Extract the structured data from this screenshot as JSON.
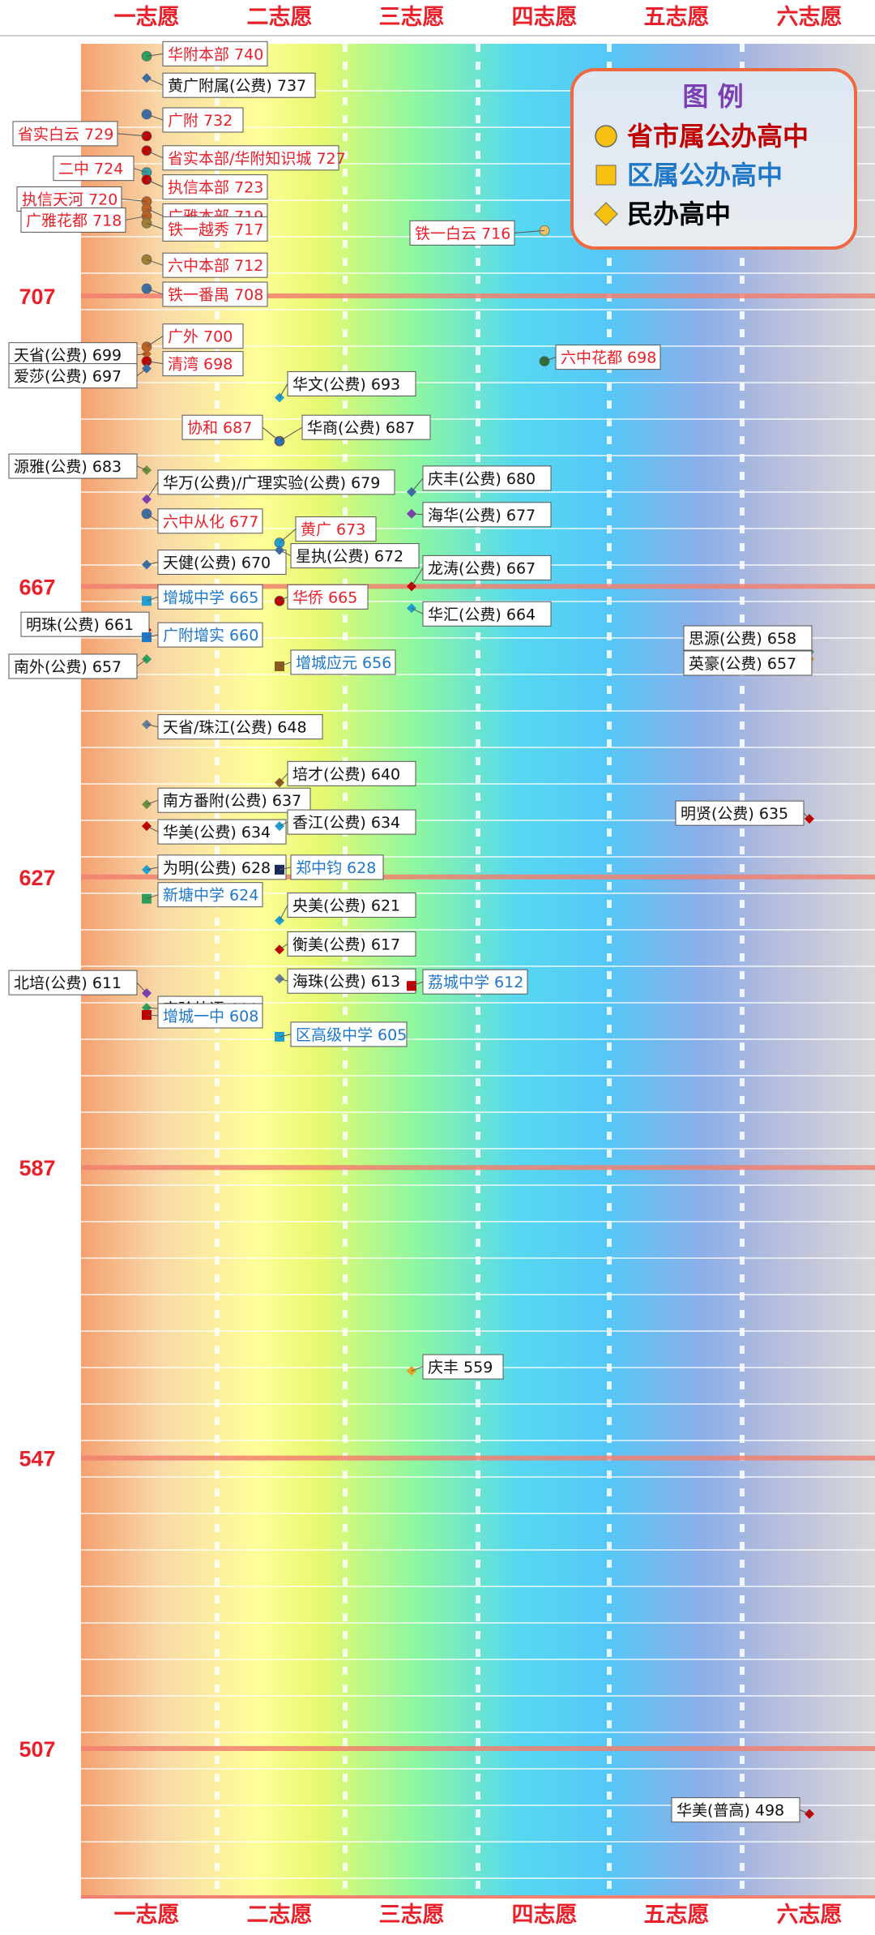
{
  "chart_data": {
    "type": "scatter",
    "title": "",
    "columns": [
      "一志愿",
      "二志愿",
      "三志愿",
      "四志愿",
      "五志愿",
      "六志愿"
    ],
    "y_ticks": [
      707,
      667,
      627,
      587,
      547,
      507
    ],
    "ylim": [
      490,
      750
    ],
    "grid": true,
    "legend": {
      "title": "图 例",
      "placement": "top-right",
      "items": [
        {
          "label": "省市属公办高中",
          "shape": "circle",
          "color": "#c00000"
        },
        {
          "label": "区属公办高中",
          "shape": "square",
          "color": "#1f77c8"
        },
        {
          "label": "民办高中",
          "shape": "diamond",
          "color": "#000000"
        }
      ]
    },
    "points": [
      {
        "column": 1,
        "score": 740,
        "text": "华附本部 740",
        "category": "city",
        "marker": "#2ca05a"
      },
      {
        "column": 1,
        "score": 737,
        "text": "黄广附属(公费) 737",
        "category": "private",
        "marker": "#3a6ea5"
      },
      {
        "column": 1,
        "score": 732,
        "text": "广附 732",
        "category": "city",
        "marker": "#3a6ea5"
      },
      {
        "column": 1,
        "score": 729,
        "text": "省实白云 729",
        "category": "city",
        "marker": "#c00000"
      },
      {
        "column": 1,
        "score": 727,
        "text": "省实本部/华附知识城 727",
        "category": "city",
        "marker": "#c00000"
      },
      {
        "column": 1,
        "score": 724,
        "text": "二中 724",
        "category": "city",
        "marker": "#2ca0a0"
      },
      {
        "column": 1,
        "score": 723,
        "text": "执信本部 723",
        "category": "city",
        "marker": "#c00000"
      },
      {
        "column": 1,
        "score": 720,
        "text": "执信天河 720",
        "category": "city",
        "marker": "#c06020"
      },
      {
        "column": 1,
        "score": 719,
        "text": "广雅本部 719",
        "category": "city",
        "marker": "#c06020"
      },
      {
        "column": 1,
        "score": 718,
        "text": "广雅花都 718",
        "category": "city",
        "marker": "#c06020"
      },
      {
        "column": 1,
        "score": 717,
        "text": "铁一越秀 717",
        "category": "city",
        "marker": "#a08030"
      },
      {
        "column": 1,
        "score": 712,
        "text": "六中本部 712",
        "category": "city",
        "marker": "#a08030"
      },
      {
        "column": 1,
        "score": 708,
        "text": "铁一番禺 708",
        "category": "city",
        "marker": "#3a6ea5"
      },
      {
        "column": 1,
        "score": 700,
        "text": "广外 700",
        "category": "city",
        "marker": "#c06020"
      },
      {
        "column": 1,
        "score": 699,
        "text": "天省(公费) 699",
        "category": "private",
        "marker": "#c06020"
      },
      {
        "column": 1,
        "score": 698,
        "text": "清湾 698",
        "category": "city",
        "marker": "#c00000"
      },
      {
        "column": 1,
        "score": 697,
        "text": "爱莎(公费) 697",
        "category": "private",
        "marker": "#3a6ea5"
      },
      {
        "column": 1,
        "score": 683,
        "text": "源雅(公费) 683",
        "category": "private",
        "marker": "#6a8e3a"
      },
      {
        "column": 1,
        "score": 679,
        "text": "华万(公费)/广理实验(公费) 679",
        "category": "private",
        "marker": "#7b3fb3"
      },
      {
        "column": 1,
        "score": 677,
        "text": "六中从化 677",
        "category": "city",
        "marker": "#3a6ea5"
      },
      {
        "column": 1,
        "score": 670,
        "text": "天健(公费) 670",
        "category": "private",
        "marker": "#3a6ea5"
      },
      {
        "column": 1,
        "score": 665,
        "text": "增城中学 665",
        "category": "district",
        "marker": "#1fa0d0"
      },
      {
        "column": 1,
        "score": 661,
        "text": "明珠(公费) 661",
        "category": "private",
        "marker": "#c00000"
      },
      {
        "column": 1,
        "score": 660,
        "text": "广附增实 660",
        "category": "district",
        "marker": "#1f77c8"
      },
      {
        "column": 1,
        "score": 657,
        "text": "南外(公费) 657",
        "category": "private",
        "marker": "#2ca05a"
      },
      {
        "column": 1,
        "score": 648,
        "text": "天省/珠江(公费) 648",
        "category": "private",
        "marker": "#6a7e9a"
      },
      {
        "column": 1,
        "score": 637,
        "text": "南方番附(公费) 637",
        "category": "private",
        "marker": "#6a8e3a"
      },
      {
        "column": 1,
        "score": 634,
        "text": "华美(公费) 634",
        "category": "private",
        "marker": "#c00000"
      },
      {
        "column": 1,
        "score": 628,
        "text": "为明(公费) 628",
        "category": "private",
        "marker": "#1fa0d0"
      },
      {
        "column": 1,
        "score": 624,
        "text": "新塘中学 624",
        "category": "district",
        "marker": "#2ca05a"
      },
      {
        "column": 1,
        "score": 611,
        "text": "北培(公费) 611",
        "category": "private",
        "marker": "#7b3fb3"
      },
      {
        "column": 1,
        "score": 609,
        "text": "实验外语 609",
        "category": "private",
        "marker": "#2ca05a"
      },
      {
        "column": 1,
        "score": 608,
        "text": "增城一中 608",
        "category": "district",
        "marker": "#c00000"
      },
      {
        "column": 2,
        "score": 693,
        "text": "华文(公费) 693",
        "category": "private",
        "marker": "#1fa0d0"
      },
      {
        "column": 2,
        "score": 687,
        "text": "协和 687",
        "category": "city",
        "marker": "#8a4020"
      },
      {
        "column": 2,
        "score": 687,
        "text": "华商(公费) 687",
        "category": "private",
        "marker": "#1f77c8"
      },
      {
        "column": 2,
        "score": 673,
        "text": "黄广 673",
        "category": "city",
        "marker": "#1fa0d0"
      },
      {
        "column": 2,
        "score": 672,
        "text": "星执(公费) 672",
        "category": "private",
        "marker": "#3a6ea5"
      },
      {
        "column": 2,
        "score": 665,
        "text": "华侨 665",
        "category": "city",
        "marker": "#c00000"
      },
      {
        "column": 2,
        "score": 656,
        "text": "增城应元 656",
        "category": "district",
        "marker": "#8a5a20"
      },
      {
        "column": 2,
        "score": 640,
        "text": "培才(公费) 640",
        "category": "private",
        "marker": "#8a5a20"
      },
      {
        "column": 2,
        "score": 634,
        "text": "香江(公费) 634",
        "category": "private",
        "marker": "#1fa0d0"
      },
      {
        "column": 2,
        "score": 628,
        "text": "郑中钧 628",
        "category": "district",
        "marker": "#1a2a5a"
      },
      {
        "column": 2,
        "score": 621,
        "text": "央美(公费) 621",
        "category": "private",
        "marker": "#1fa0d0"
      },
      {
        "column": 2,
        "score": 617,
        "text": "衡美(公费) 617",
        "category": "private",
        "marker": "#c00000"
      },
      {
        "column": 2,
        "score": 613,
        "text": "海珠(公费) 613",
        "category": "private",
        "marker": "#6a7e9a"
      },
      {
        "column": 2,
        "score": 605,
        "text": "区高级中学 605",
        "category": "district",
        "marker": "#1fa0d0"
      },
      {
        "column": 3,
        "score": 680,
        "text": "庆丰(公费) 680",
        "category": "private",
        "marker": "#3a6ea5"
      },
      {
        "column": 3,
        "score": 677,
        "text": "海华(公费) 677",
        "category": "private",
        "marker": "#7b3fb3"
      },
      {
        "column": 3,
        "score": 667,
        "text": "龙涛(公费) 667",
        "category": "private",
        "marker": "#c00000"
      },
      {
        "column": 3,
        "score": 664,
        "text": "华汇(公费) 664",
        "category": "private",
        "marker": "#1fa0d0"
      },
      {
        "column": 3,
        "score": 612,
        "text": "荔城中学 612",
        "category": "district",
        "marker": "#c00000"
      },
      {
        "column": 3,
        "score": 559,
        "text": "庆丰 559",
        "category": "private",
        "marker": "#e8a020"
      },
      {
        "column": 4,
        "score": 716,
        "text": "铁一白云 716",
        "category": "city",
        "marker": "#f0c060"
      },
      {
        "column": 4,
        "score": 698,
        "text": "六中花都 698",
        "category": "city",
        "marker": "#2c6e3a"
      },
      {
        "column": 6,
        "score": 658,
        "text": "思源(公费) 658",
        "category": "private",
        "marker": "#2ca05a"
      },
      {
        "column": 6,
        "score": 657,
        "text": "英豪(公费) 657",
        "category": "private",
        "marker": "#e08020"
      },
      {
        "column": 6,
        "score": 635,
        "text": "明贤(公费) 635",
        "category": "private",
        "marker": "#c00000"
      },
      {
        "column": 6,
        "score": 498,
        "text": "华美(普高) 498",
        "category": "private",
        "marker": "#c00000"
      }
    ],
    "category_colors": {
      "city": "#e8202a",
      "district": "#1f77c8",
      "private": "#111111"
    }
  }
}
